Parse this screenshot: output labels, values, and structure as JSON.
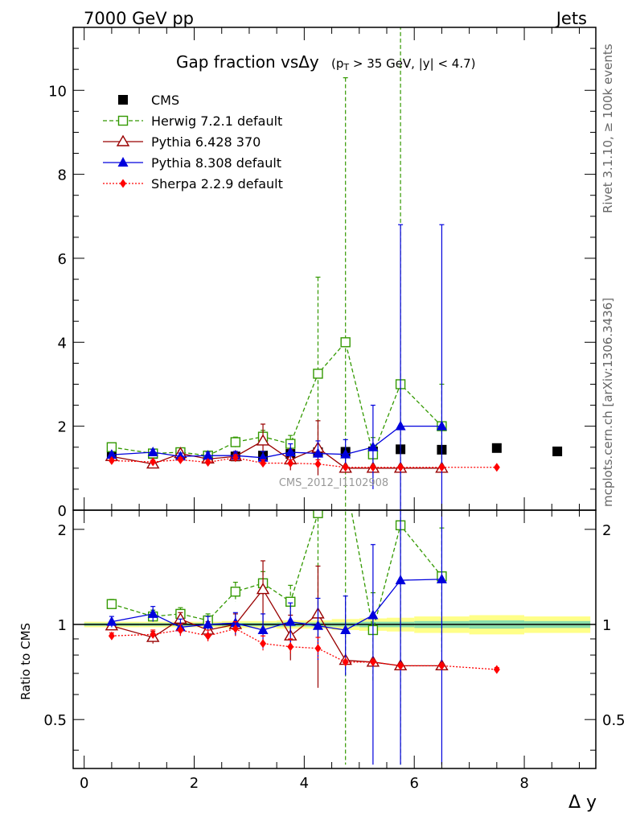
{
  "header": {
    "left": "7000 GeV pp",
    "right": "Jets"
  },
  "side": {
    "rivet": "Rivet 3.1.10, ≥ 100k events",
    "mcplots": "mcplots.cern.ch [arXiv:1306.3436]"
  },
  "chart_data": [
    {
      "type": "line",
      "title_main": "Gap fraction vsΔy",
      "title_sub": "(p_T > 35 GeV, |y| < 4.7)",
      "watermark": "CMS_2012_I1102908",
      "xlabel": "Δ y",
      "ylabel": "",
      "xlim": [
        -0.2,
        9.3
      ],
      "ylim": [
        0,
        11.5
      ],
      "x_ticks": [
        "0",
        "2",
        "4",
        "6",
        "8"
      ],
      "y_ticks": [
        "0",
        "2",
        "4",
        "6",
        "8",
        "10"
      ],
      "legend_position": "top-left",
      "series": [
        {
          "name": "CMS",
          "color": "#000000",
          "marker": "filled-square",
          "line": "none",
          "x": [
            0.5,
            1.25,
            1.75,
            2.25,
            2.75,
            3.25,
            3.75,
            4.25,
            4.75,
            5.25,
            5.75,
            6.5,
            7.5,
            8.6
          ],
          "y": [
            1.29,
            1.34,
            1.33,
            1.3,
            1.28,
            1.3,
            1.34,
            1.38,
            1.39,
            1.4,
            1.45,
            1.44,
            1.48,
            1.4
          ]
        },
        {
          "name": "Herwig 7.2.1 default",
          "color": "#339900",
          "marker": "open-square",
          "line": "dashed",
          "x": [
            0.5,
            1.25,
            1.75,
            2.25,
            2.75,
            3.25,
            3.75,
            4.25,
            4.75,
            5.25,
            5.75,
            6.5
          ],
          "y": [
            1.5,
            1.35,
            1.38,
            1.3,
            1.62,
            1.75,
            1.58,
            3.25,
            4.0,
            1.33,
            3.0,
            2.0
          ],
          "err": [
            0.05,
            0.06,
            0.06,
            0.07,
            0.12,
            0.15,
            0.2,
            2.3,
            6.3,
            0.4,
            9.0,
            1.0
          ]
        },
        {
          "name": "Pythia 6.428 370",
          "color": "#990000",
          "marker": "open-triangle",
          "line": "solid",
          "x": [
            0.5,
            1.25,
            1.75,
            2.25,
            2.75,
            3.25,
            3.75,
            4.25,
            4.75,
            5.25,
            5.75,
            6.5
          ],
          "y": [
            1.28,
            1.1,
            1.35,
            1.22,
            1.28,
            1.65,
            1.2,
            1.48,
            1.0,
            1.0,
            1.0,
            1.0
          ],
          "err": [
            0.04,
            0.05,
            0.07,
            0.08,
            0.1,
            0.4,
            0.25,
            0.65,
            0.0,
            0.0,
            0.0,
            0.0
          ]
        },
        {
          "name": "Pythia 8.308 default",
          "color": "#0000dd",
          "marker": "filled-triangle",
          "line": "solid",
          "x": [
            0.5,
            1.25,
            1.75,
            2.25,
            2.75,
            3.25,
            3.75,
            4.25,
            4.75,
            5.25,
            5.75,
            6.5
          ],
          "y": [
            1.32,
            1.38,
            1.28,
            1.3,
            1.3,
            1.25,
            1.38,
            1.35,
            1.33,
            1.5,
            2.0,
            2.0
          ],
          "err": [
            0.05,
            0.07,
            0.08,
            0.08,
            0.1,
            0.15,
            0.2,
            0.3,
            0.35,
            1.0,
            4.8,
            4.8
          ]
        },
        {
          "name": "Sherpa 2.2.9 default",
          "color": "#ff0000",
          "marker": "filled-diamond",
          "line": "dotted",
          "x": [
            0.5,
            1.25,
            1.75,
            2.25,
            2.75,
            3.25,
            3.75,
            4.25,
            4.75,
            5.25,
            5.75,
            6.5,
            7.5
          ],
          "y": [
            1.18,
            1.15,
            1.2,
            1.14,
            1.25,
            1.12,
            1.12,
            1.1,
            1.02,
            1.02,
            1.02,
            1.02,
            1.02
          ],
          "err": [
            0.03,
            0.04,
            0.05,
            0.05,
            0.07,
            0.08,
            0.08,
            0.1,
            0.0,
            0.0,
            0.0,
            0.0,
            0.0
          ]
        }
      ]
    },
    {
      "type": "line",
      "title": "",
      "xlabel": "Δ y",
      "ylabel": "Ratio to CMS",
      "xlim": [
        -0.2,
        9.3
      ],
      "ylim": [
        0.35,
        2.3
      ],
      "x_ticks": [
        "0",
        "2",
        "4",
        "6",
        "8"
      ],
      "y_ticks": [
        "0.5",
        "1",
        "2"
      ],
      "y_tick_values": [
        0.5,
        1,
        2
      ],
      "band": {
        "x_edges": [
          0.0,
          1.0,
          1.5,
          2.0,
          2.5,
          3.0,
          3.5,
          4.0,
          4.5,
          5.0,
          5.5,
          6.0,
          7.0,
          8.0,
          9.2
        ],
        "inner": [
          0.01,
          0.01,
          0.01,
          0.01,
          0.012,
          0.012,
          0.015,
          0.015,
          0.015,
          0.02,
          0.02,
          0.025,
          0.03,
          0.025
        ],
        "outer": [
          0.02,
          0.02,
          0.02,
          0.02,
          0.025,
          0.025,
          0.03,
          0.03,
          0.04,
          0.045,
          0.05,
          0.06,
          0.07,
          0.06
        ]
      },
      "series": [
        {
          "name": "Herwig 7.2.1 default",
          "color": "#339900",
          "marker": "open-square",
          "line": "dashed",
          "x": [
            0.5,
            1.25,
            1.75,
            2.25,
            2.75,
            3.25,
            3.75,
            4.25,
            4.75,
            5.25,
            5.75,
            6.5
          ],
          "y": [
            1.16,
            1.06,
            1.08,
            1.03,
            1.27,
            1.35,
            1.18,
            2.25,
            2.9,
            0.96,
            2.06,
            1.42
          ],
          "err": [
            0.04,
            0.05,
            0.05,
            0.05,
            0.09,
            0.12,
            0.15,
            1.4,
            3.5,
            0.3,
            5.0,
            0.6
          ]
        },
        {
          "name": "Pythia 6.428 370",
          "color": "#990000",
          "marker": "open-triangle",
          "line": "solid",
          "x": [
            0.5,
            1.25,
            1.75,
            2.25,
            2.75,
            3.25,
            3.75,
            4.25,
            4.75,
            5.25,
            5.75,
            6.5
          ],
          "y": [
            0.99,
            0.91,
            1.04,
            0.96,
            1.0,
            1.29,
            0.92,
            1.08,
            0.77,
            0.76,
            0.74,
            0.74
          ],
          "err": [
            0.03,
            0.04,
            0.05,
            0.06,
            0.08,
            0.3,
            0.15,
            0.45,
            0.01,
            0.01,
            0.01,
            0.01
          ]
        },
        {
          "name": "Pythia 8.308 default",
          "color": "#0000dd",
          "marker": "filled-triangle",
          "line": "solid",
          "x": [
            0.5,
            1.25,
            1.75,
            2.25,
            2.75,
            3.25,
            3.75,
            4.25,
            4.75,
            5.25,
            5.75,
            6.5
          ],
          "y": [
            1.02,
            1.08,
            0.98,
            1.0,
            1.01,
            0.96,
            1.02,
            0.99,
            0.96,
            1.07,
            1.38,
            1.39
          ],
          "err": [
            0.04,
            0.06,
            0.06,
            0.06,
            0.08,
            0.12,
            0.15,
            0.22,
            0.27,
            0.72,
            3.3,
            3.3
          ]
        },
        {
          "name": "Sherpa 2.2.9 default",
          "color": "#ff0000",
          "marker": "filled-diamond",
          "line": "dotted",
          "x": [
            0.5,
            1.25,
            1.75,
            2.25,
            2.75,
            3.25,
            3.75,
            4.25,
            4.75,
            5.25,
            5.75,
            6.5,
            7.5
          ],
          "y": [
            0.92,
            0.93,
            0.96,
            0.92,
            0.97,
            0.87,
            0.85,
            0.84,
            0.76,
            0.76,
            0.74,
            0.74,
            0.72
          ],
          "err": [
            0.02,
            0.03,
            0.04,
            0.04,
            0.05,
            0.05,
            0.05,
            0.07,
            0.01,
            0.01,
            0.01,
            0.01,
            0.01
          ]
        }
      ]
    }
  ]
}
